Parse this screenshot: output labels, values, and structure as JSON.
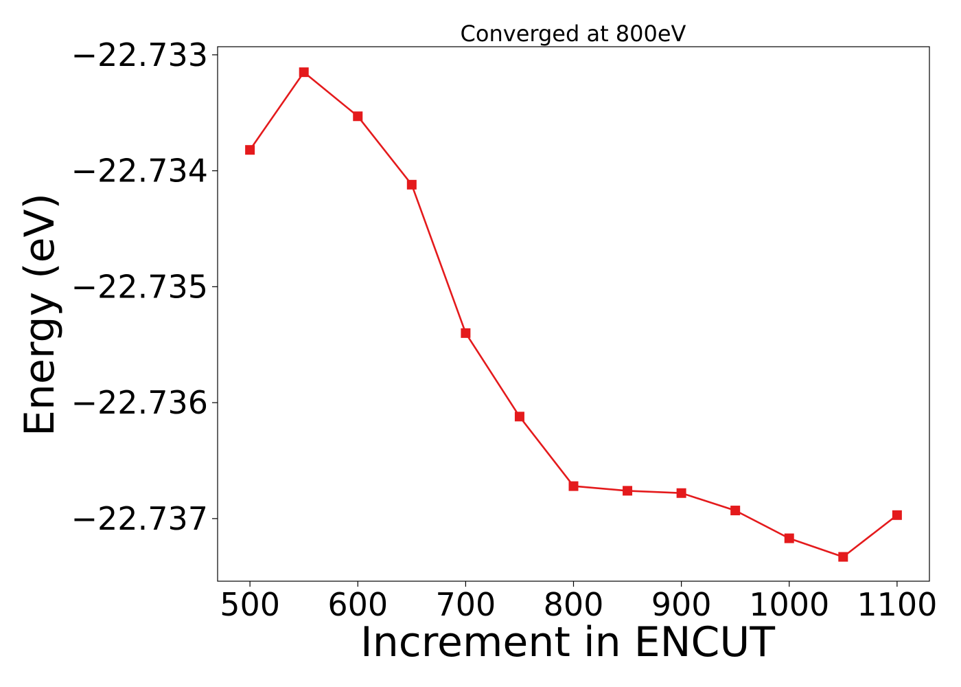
{
  "chart_data": {
    "type": "line",
    "title": "Converged at 800eV",
    "xlabel": "Increment in ENCUT",
    "ylabel": "Energy (eV)",
    "x": [
      500,
      550,
      600,
      650,
      700,
      750,
      800,
      850,
      900,
      950,
      1000,
      1050,
      1100
    ],
    "series": [
      {
        "values": [
          -22.73382,
          -22.73315,
          -22.73353,
          -22.73412,
          -22.7354,
          -22.73612,
          -22.73672,
          -22.73676,
          -22.73678,
          -22.73693,
          -22.73717,
          -22.73733,
          -22.73697
        ],
        "color": "#e41a1c",
        "marker": "square"
      }
    ],
    "xlim": [
      470,
      1130
    ],
    "ylim": [
      -22.73754,
      -22.73293
    ],
    "x_ticks": [
      500,
      600,
      700,
      800,
      900,
      1000,
      1100
    ],
    "x_tick_labels": [
      "500",
      "600",
      "700",
      "800",
      "900",
      "1000",
      "1100"
    ],
    "y_ticks": [
      -22.733,
      -22.734,
      -22.735,
      -22.736,
      -22.737
    ],
    "y_tick_labels": [
      "−22.733",
      "−22.734",
      "−22.735",
      "−22.736",
      "−22.737"
    ],
    "grid": false,
    "legend": "none"
  }
}
